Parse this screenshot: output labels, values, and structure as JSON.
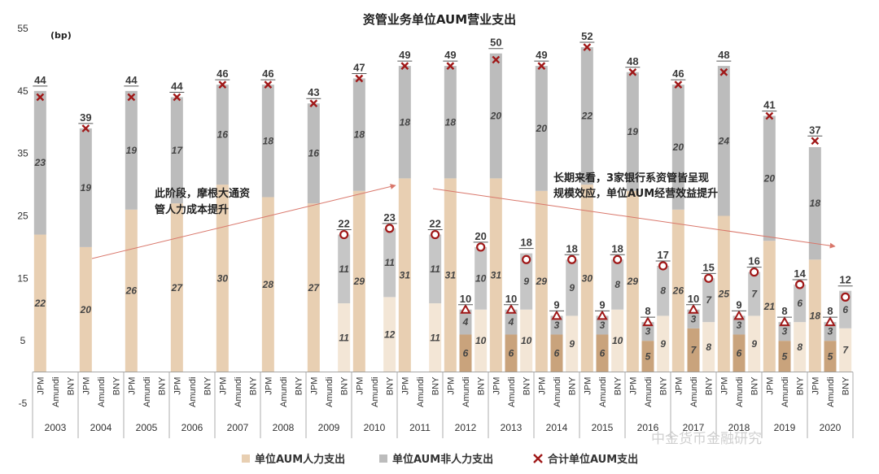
{
  "chart_data": {
    "type": "bar",
    "stacked": true,
    "title": "资管业务单位AUM营业支出",
    "unit_label": "(bp)",
    "ylim": [
      -5,
      55
    ],
    "yticks": [
      -5,
      5,
      15,
      25,
      35,
      45,
      55
    ],
    "legend_position": "bottom",
    "series": [
      {
        "name": "单位AUM人力支出",
        "color": "#e8cfb2"
      },
      {
        "name": "单位AUM非人力支出",
        "color": "#bcbcbc"
      },
      {
        "name": "合计单位AUM支出",
        "color": "#a01818"
      }
    ],
    "groups": [
      {
        "year": "2003",
        "bars": [
          {
            "cat": "JPM",
            "labor": 22,
            "nonlabor": 23,
            "total": 44
          }
        ]
      },
      {
        "year": "2004",
        "bars": [
          {
            "cat": "JPM",
            "labor": 20,
            "nonlabor": 19,
            "total": 39
          }
        ]
      },
      {
        "year": "2005",
        "bars": [
          {
            "cat": "JPM",
            "labor": 26,
            "nonlabor": 19,
            "total": 44
          }
        ]
      },
      {
        "year": "2006",
        "bars": [
          {
            "cat": "JPM",
            "labor": 27,
            "nonlabor": 17,
            "total": 44
          }
        ]
      },
      {
        "year": "2007",
        "bars": [
          {
            "cat": "JPM",
            "labor": 30,
            "nonlabor": 16,
            "total": 46
          }
        ]
      },
      {
        "year": "2008",
        "bars": [
          {
            "cat": "JPM",
            "labor": 28,
            "nonlabor": 18,
            "total": 46
          }
        ]
      },
      {
        "year": "2009",
        "bars": [
          {
            "cat": "JPM",
            "labor": 27,
            "nonlabor": 16,
            "total": 43
          },
          {
            "cat": "Amundi"
          },
          {
            "cat": "BNY",
            "labor": 11,
            "nonlabor": 11,
            "total": 22
          }
        ]
      },
      {
        "year": "2010",
        "bars": [
          {
            "cat": "JPM",
            "labor": 29,
            "nonlabor": 18,
            "total": 47
          },
          {
            "cat": "Amundi"
          },
          {
            "cat": "BNY",
            "labor": 12,
            "nonlabor": 11,
            "total": 23
          }
        ]
      },
      {
        "year": "2011",
        "bars": [
          {
            "cat": "JPM",
            "labor": 31,
            "nonlabor": 18,
            "total": 49
          },
          {
            "cat": "Amundi"
          },
          {
            "cat": "BNY",
            "labor": 11,
            "nonlabor": 11,
            "total": 22
          }
        ]
      },
      {
        "year": "2012",
        "bars": [
          {
            "cat": "JPM",
            "labor": 31,
            "nonlabor": 18,
            "total": 49
          },
          {
            "cat": "Amundi",
            "labor": 6,
            "nonlabor": 4,
            "total": 10
          },
          {
            "cat": "BNY",
            "labor": 10,
            "nonlabor": 10,
            "total": 20
          }
        ]
      },
      {
        "year": "2013",
        "bars": [
          {
            "cat": "JPM",
            "labor": 31,
            "nonlabor": 20,
            "total": 50
          },
          {
            "cat": "Amundi",
            "labor": 6,
            "nonlabor": 4,
            "total": 10
          },
          {
            "cat": "BNY",
            "labor": 10,
            "nonlabor": 9,
            "total": 18
          }
        ]
      },
      {
        "year": "2014",
        "bars": [
          {
            "cat": "JPM",
            "labor": 29,
            "nonlabor": 20,
            "total": 49
          },
          {
            "cat": "Amundi",
            "labor": 6,
            "nonlabor": 3,
            "total": 9
          },
          {
            "cat": "BNY",
            "labor": 9,
            "nonlabor": 9,
            "total": 18
          }
        ]
      },
      {
        "year": "2015",
        "bars": [
          {
            "cat": "JPM",
            "labor": 30,
            "nonlabor": 22,
            "total": 52
          },
          {
            "cat": "Amundi",
            "labor": 6,
            "nonlabor": 3,
            "total": 9
          },
          {
            "cat": "BNY",
            "labor": 10,
            "nonlabor": 8,
            "total": 18
          }
        ]
      },
      {
        "year": "2016",
        "bars": [
          {
            "cat": "JPM",
            "labor": 29,
            "nonlabor": 19,
            "total": 48
          },
          {
            "cat": "Amundi",
            "labor": 5,
            "nonlabor": 3,
            "total": 8
          },
          {
            "cat": "BNY",
            "labor": 9,
            "nonlabor": 8,
            "total": 17
          }
        ]
      },
      {
        "year": "2017",
        "bars": [
          {
            "cat": "JPM",
            "labor": 26,
            "nonlabor": 20,
            "total": 46
          },
          {
            "cat": "Amundi",
            "labor": 7,
            "nonlabor": 3,
            "total": 10
          },
          {
            "cat": "BNY",
            "labor": 8,
            "nonlabor": 7,
            "total": 15
          }
        ]
      },
      {
        "year": "2018",
        "bars": [
          {
            "cat": "JPM",
            "labor": 25,
            "nonlabor": 24,
            "total": 48
          },
          {
            "cat": "Amundi",
            "labor": 6,
            "nonlabor": 3,
            "total": 9
          },
          {
            "cat": "BNY",
            "labor": 9,
            "nonlabor": 7,
            "total": 16
          }
        ]
      },
      {
        "year": "2019",
        "bars": [
          {
            "cat": "JPM",
            "labor": 21,
            "nonlabor": 20,
            "total": 41
          },
          {
            "cat": "Amundi",
            "labor": 5,
            "nonlabor": 3,
            "total": 8
          },
          {
            "cat": "BNY",
            "labor": 8,
            "nonlabor": 6,
            "total": 14
          }
        ]
      },
      {
        "year": "2020",
        "bars": [
          {
            "cat": "JPM",
            "labor": 18,
            "nonlabor": 18,
            "total": 37
          },
          {
            "cat": "Amundi",
            "labor": 5,
            "nonlabor": 3,
            "total": 8
          },
          {
            "cat": "BNY",
            "labor": 7,
            "nonlabor": 6,
            "total": 12
          }
        ]
      }
    ],
    "annotations": [
      {
        "lines": [
          "此阶段，摩根大通资",
          "管人力成本提升"
        ]
      },
      {
        "lines": [
          "长期来看，3家银行系资管皆呈现",
          "规模效应，单位AUM经营效益提升"
        ]
      }
    ]
  },
  "watermark": "中金货币金融研究"
}
